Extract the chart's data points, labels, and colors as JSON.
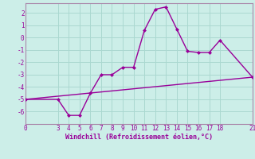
{
  "xlabel": "Windchill (Refroidissement éolien,°C)",
  "bg_color": "#cceee8",
  "grid_color": "#aad8d0",
  "line_color": "#990099",
  "spine_color": "#aa88aa",
  "line1_x": [
    0,
    3,
    4,
    5,
    6,
    7,
    8,
    9,
    10,
    11,
    12,
    13,
    14,
    15,
    16,
    17,
    18,
    21
  ],
  "line1_y": [
    -5,
    -5,
    -6.3,
    -6.3,
    -4.5,
    -3.0,
    -3.0,
    -2.4,
    -2.4,
    0.6,
    2.3,
    2.5,
    0.7,
    -1.1,
    -1.2,
    -1.2,
    -0.2,
    -3.2
  ],
  "line2_x": [
    0,
    21
  ],
  "line2_y": [
    -5,
    -3.2
  ],
  "xticks": [
    0,
    3,
    4,
    5,
    6,
    7,
    8,
    9,
    10,
    11,
    12,
    13,
    14,
    15,
    16,
    17,
    18,
    21
  ],
  "yticks": [
    -6,
    -5,
    -4,
    -3,
    -2,
    -1,
    0,
    1,
    2
  ],
  "xlim": [
    0,
    21
  ],
  "ylim": [
    -7.0,
    2.8
  ],
  "tick_fontsize": 5.5,
  "xlabel_fontsize": 6.0
}
